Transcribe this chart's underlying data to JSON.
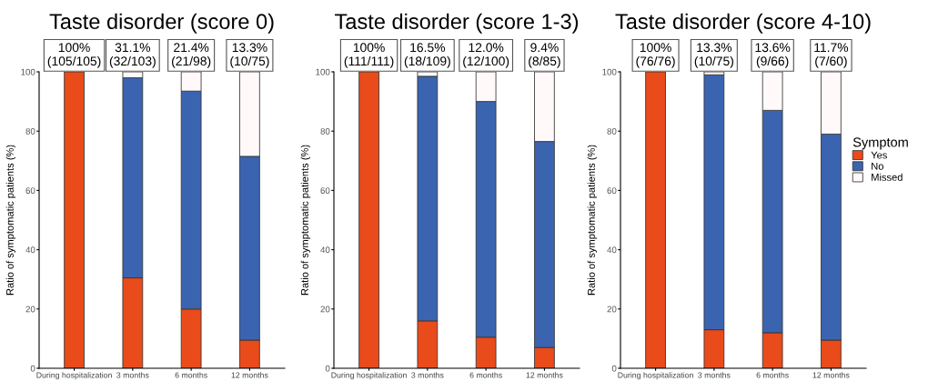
{
  "chart_data": [
    {
      "type": "bar",
      "title": "Taste disorder (score 0)",
      "ylabel": "Ratio of symptomatic patients (%)",
      "categories": [
        "During hospitalization",
        "3 months",
        "6 months",
        "12 months"
      ],
      "stacked": true,
      "ylim": [
        0,
        100
      ],
      "yticks": [
        0,
        20,
        40,
        60,
        80,
        100
      ],
      "grid": false,
      "legend": false,
      "series": [
        {
          "color": "#e94b1b",
          "values": [
            100,
            30.5,
            20,
            9.5
          ]
        },
        {
          "color": "#3b64b0",
          "values": [
            0,
            67.5,
            73.5,
            62
          ]
        },
        {
          "color": "#fff9f9",
          "values": [
            0,
            2,
            6.5,
            28.5
          ]
        }
      ],
      "annotations": [
        {
          "text": "100%\n(105/105)",
          "x": "During hospitalization",
          "y": 100
        },
        {
          "text": "31.1%\n(32/103)",
          "x": "3 months",
          "y": 100
        },
        {
          "text": "21.4%\n(21/98)",
          "x": "6 months",
          "y": 100
        },
        {
          "text": "13.3%\n(10/75)",
          "x": "12 months",
          "y": 100
        }
      ]
    },
    {
      "type": "bar",
      "title": "Taste disorder (score 1-3)",
      "ylabel": "Ratio of symptomatic patients (%)",
      "categories": [
        "During hospitalization",
        "3 months",
        "6 months",
        "12 months"
      ],
      "stacked": true,
      "ylim": [
        0,
        100
      ],
      "yticks": [
        0,
        20,
        40,
        60,
        80,
        100
      ],
      "grid": false,
      "legend": false,
      "series": [
        {
          "color": "#e94b1b",
          "values": [
            100,
            16,
            10.5,
            7
          ]
        },
        {
          "color": "#3b64b0",
          "values": [
            0,
            82.5,
            79.5,
            69.5
          ]
        },
        {
          "color": "#fff9f9",
          "values": [
            0,
            1.5,
            10,
            23.5
          ]
        }
      ],
      "annotations": [
        {
          "text": "100%\n(111/111)",
          "x": "During hospitalization",
          "y": 100
        },
        {
          "text": "16.5%\n(18/109)",
          "x": "3 months",
          "y": 100
        },
        {
          "text": "12.0%\n(12/100)",
          "x": "6 months",
          "y": 100
        },
        {
          "text": "9.4%\n(8/85)",
          "x": "12 months",
          "y": 100
        }
      ]
    },
    {
      "type": "bar",
      "title": "Taste disorder (score 4-10)",
      "ylabel": "Ratio of symptomatic patients (%)",
      "categories": [
        "During hospitalization",
        "3 months",
        "6 months",
        "12 months"
      ],
      "stacked": true,
      "ylim": [
        0,
        100
      ],
      "yticks": [
        0,
        20,
        40,
        60,
        80,
        100
      ],
      "grid": false,
      "legend": "right",
      "legend_title": "Symptom",
      "series": [
        {
          "name": "Yes",
          "color": "#e94b1b",
          "values": [
            100,
            13,
            12,
            9.5
          ]
        },
        {
          "name": "No",
          "color": "#3b64b0",
          "values": [
            0,
            86,
            75,
            69.5
          ]
        },
        {
          "name": "Missed",
          "color": "#fff9f9",
          "values": [
            0,
            1,
            13,
            21
          ]
        }
      ],
      "annotations": [
        {
          "text": "100%\n(76/76)",
          "x": "During hospitalization",
          "y": 100
        },
        {
          "text": "13.3%\n(10/75)",
          "x": "3 months",
          "y": 100
        },
        {
          "text": "13.6%\n(9/66)",
          "x": "6 months",
          "y": 100
        },
        {
          "text": "11.7%\n(7/60)",
          "x": "12 months",
          "y": 100
        }
      ]
    }
  ]
}
